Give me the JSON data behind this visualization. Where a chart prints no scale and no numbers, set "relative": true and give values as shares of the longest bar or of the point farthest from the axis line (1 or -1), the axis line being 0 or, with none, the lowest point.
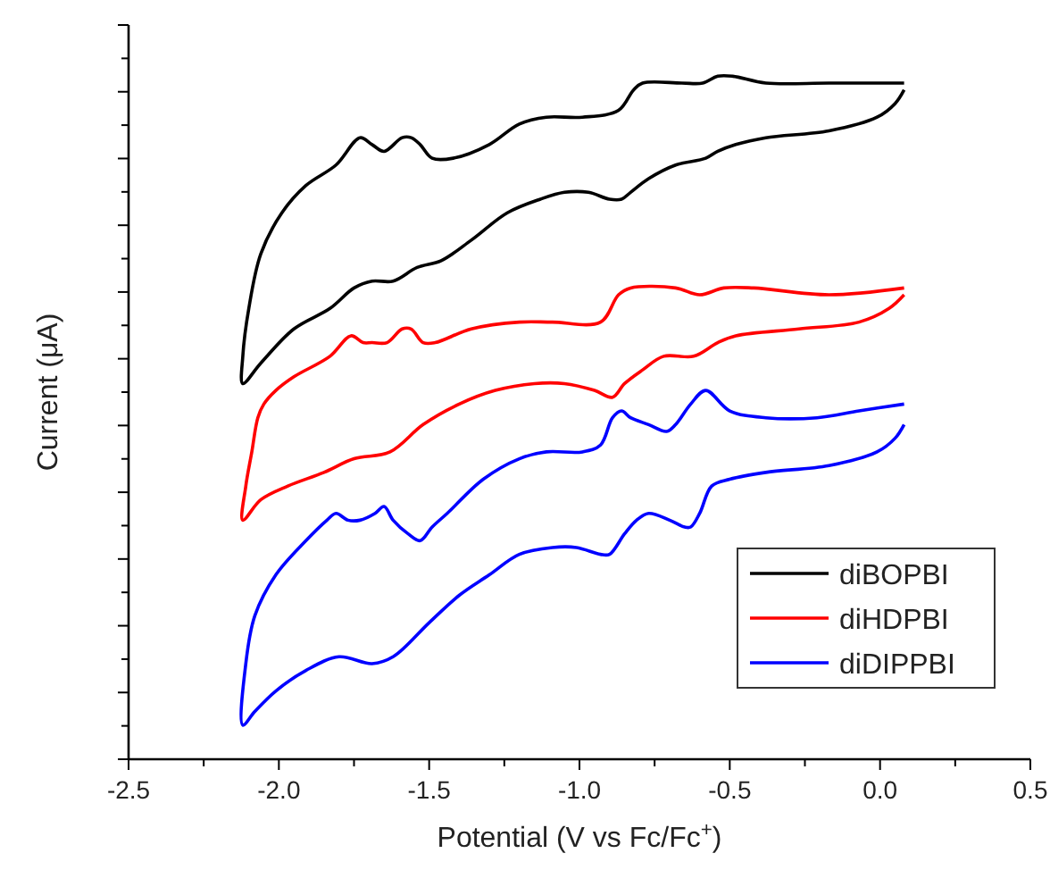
{
  "chart_data": {
    "type": "line",
    "relative": true,
    "xlabel": "Potential (V vs Fc/Fc$^{+}$)",
    "ylabel": "Current (μA)",
    "xlim": [
      -2.5,
      0.5
    ],
    "xticks": [
      -2.5,
      {
        "value": -2.25,
        "label": null
      },
      "-2.0",
      {
        "value": -1.75,
        "label": null
      },
      -1.5,
      {
        "value": -1.25,
        "label": null
      },
      "-1.0",
      {
        "value": -0.75,
        "label": null
      },
      -0.5,
      {
        "value": -0.25,
        "label": null
      },
      "0.0",
      {
        "value": 0.25,
        "label": null
      },
      0.5
    ],
    "legend": "bottom right",
    "tick_labels": "x",
    "marker": "none",
    "line_style": "solid",
    "series": [
      {
        "name": "diBOPBI",
        "color": "#000000",
        "x": [
          0.08,
          -0.17,
          -0.38,
          -0.49,
          -0.54,
          -0.59,
          -0.66,
          -0.79,
          -0.82,
          -0.87,
          -0.99,
          -1.11,
          -1.2,
          -1.3,
          -1.42,
          -1.49,
          -1.53,
          -1.56,
          -1.59,
          -1.65,
          -1.69,
          -1.73,
          -1.81,
          -1.91,
          -1.99,
          -2.06,
          -2.1,
          -2.12,
          -2.12,
          -2.06,
          -1.95,
          -1.83,
          -1.75,
          -1.69,
          -1.62,
          -1.54,
          -1.46,
          -1.36,
          -1.24,
          -1.13,
          -1.05,
          -0.97,
          -0.9,
          -0.86,
          -0.83,
          -0.77,
          -0.68,
          -0.58,
          -0.54,
          -0.48,
          -0.38,
          -0.17,
          -0.01,
          0.05,
          0.08
        ],
        "values": [
          0.99,
          0.99,
          0.99,
          1.0,
          1.0,
          0.99,
          0.99,
          0.99,
          0.98,
          0.95,
          0.94,
          0.94,
          0.93,
          0.9,
          0.88,
          0.88,
          0.9,
          0.91,
          0.91,
          0.89,
          0.9,
          0.91,
          0.87,
          0.84,
          0.8,
          0.74,
          0.66,
          0.59,
          0.55,
          0.58,
          0.63,
          0.66,
          0.69,
          0.7,
          0.7,
          0.72,
          0.73,
          0.76,
          0.8,
          0.82,
          0.83,
          0.83,
          0.82,
          0.82,
          0.83,
          0.85,
          0.87,
          0.88,
          0.89,
          0.9,
          0.91,
          0.92,
          0.94,
          0.96,
          0.98
        ]
      },
      {
        "name": "diHDPBI",
        "color": "#ff0000",
        "x": [
          0.08,
          -0.17,
          -0.42,
          -0.52,
          -0.6,
          -0.68,
          -0.83,
          -0.87,
          -0.93,
          -1.09,
          -1.2,
          -1.36,
          -1.48,
          -1.52,
          -1.56,
          -1.59,
          -1.64,
          -1.69,
          -1.72,
          -1.76,
          -1.83,
          -1.95,
          -2.01,
          -2.05,
          -2.07,
          -2.09,
          -2.11,
          -2.12,
          -2.06,
          -1.97,
          -1.85,
          -1.75,
          -1.63,
          -1.52,
          -1.4,
          -1.28,
          -1.15,
          -1.05,
          -0.95,
          -0.89,
          -0.85,
          -0.79,
          -0.72,
          -0.62,
          -0.54,
          -0.48,
          -0.27,
          -0.07,
          0.03,
          0.08
        ],
        "values": [
          0.69,
          0.68,
          0.69,
          0.69,
          0.68,
          0.69,
          0.69,
          0.68,
          0.64,
          0.64,
          0.64,
          0.63,
          0.61,
          0.61,
          0.63,
          0.63,
          0.61,
          0.61,
          0.61,
          0.62,
          0.59,
          0.56,
          0.54,
          0.52,
          0.5,
          0.45,
          0.4,
          0.35,
          0.38,
          0.4,
          0.42,
          0.44,
          0.45,
          0.49,
          0.52,
          0.54,
          0.55,
          0.55,
          0.54,
          0.53,
          0.55,
          0.57,
          0.59,
          0.59,
          0.61,
          0.62,
          0.63,
          0.64,
          0.66,
          0.68
        ]
      },
      {
        "name": "diDIPPBI",
        "color": "#0000ff",
        "x": [
          0.08,
          -0.07,
          -0.21,
          -0.38,
          -0.5,
          -0.58,
          -0.63,
          -0.68,
          -0.71,
          -0.77,
          -0.83,
          -0.86,
          -0.89,
          -0.93,
          -0.99,
          -1.11,
          -1.2,
          -1.32,
          -1.44,
          -1.49,
          -1.53,
          -1.57,
          -1.62,
          -1.65,
          -1.68,
          -1.73,
          -1.77,
          -1.81,
          -1.84,
          -1.91,
          -2.01,
          -2.08,
          -2.11,
          -2.12,
          -2.08,
          -2.01,
          -1.91,
          -1.8,
          -1.69,
          -1.62,
          -1.5,
          -1.4,
          -1.3,
          -1.2,
          -1.09,
          -1.01,
          -0.93,
          -0.9,
          -0.85,
          -0.81,
          -0.77,
          -0.7,
          -0.65,
          -0.63,
          -0.6,
          -0.56,
          -0.5,
          -0.38,
          -0.17,
          -0.01,
          0.05,
          0.08
        ],
        "values": [
          0.52,
          0.51,
          0.5,
          0.5,
          0.51,
          0.54,
          0.52,
          0.49,
          0.48,
          0.49,
          0.5,
          0.51,
          0.5,
          0.46,
          0.45,
          0.45,
          0.44,
          0.41,
          0.36,
          0.34,
          0.32,
          0.33,
          0.35,
          0.37,
          0.36,
          0.35,
          0.35,
          0.36,
          0.35,
          0.32,
          0.27,
          0.21,
          0.14,
          0.05,
          0.07,
          0.1,
          0.13,
          0.15,
          0.14,
          0.15,
          0.2,
          0.24,
          0.27,
          0.3,
          0.31,
          0.31,
          0.3,
          0.3,
          0.33,
          0.35,
          0.36,
          0.35,
          0.34,
          0.34,
          0.36,
          0.4,
          0.41,
          0.42,
          0.43,
          0.45,
          0.47,
          0.49
        ]
      }
    ]
  }
}
